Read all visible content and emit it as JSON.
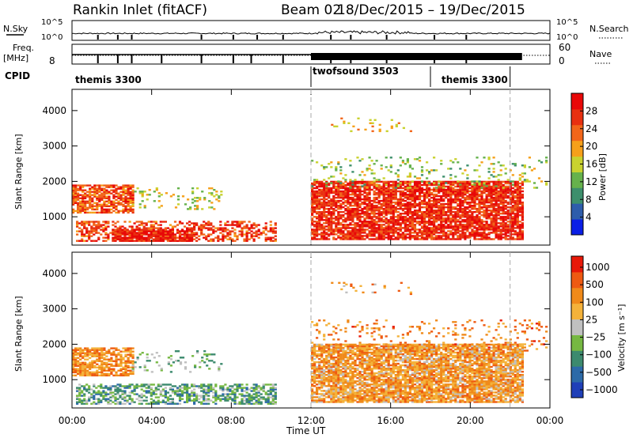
{
  "header": {
    "station": "Rankin Inlet (fitACF)",
    "beam": "Beam 02",
    "date_range": "18/Dec/2015 – 19/Dec/2015"
  },
  "noise_panel": {
    "left_label": "N.Sky",
    "right_label": "N.Search",
    "left_ticks": [
      "10^5",
      "10^0"
    ],
    "right_ticks": [
      "10^5",
      "10^0"
    ]
  },
  "freq_panel": {
    "left_label_1": "Freq.",
    "left_label_2": "[MHz]",
    "right_label": "Nave",
    "left_ticks": [
      "8"
    ],
    "right_ticks": [
      "60",
      "0"
    ]
  },
  "cpid": {
    "label": "CPID",
    "segments": [
      {
        "name": "themis 3300",
        "start_h": 0,
        "end_h": 12
      },
      {
        "name": "twofsound 3503",
        "start_h": 12,
        "end_h": 18
      },
      {
        "name": "themis 3300",
        "start_h": 18,
        "end_h": 22
      }
    ]
  },
  "colors": {
    "power_scale": [
      "#0a1ee6",
      "#2e5dab",
      "#3d8f6c",
      "#66b24c",
      "#c9d22f",
      "#f6a01a",
      "#f2661a",
      "#e83010",
      "#e80808"
    ],
    "velocity_scale": [
      "#1f3fb8",
      "#2c6aa8",
      "#3c8a6e",
      "#76b842",
      "#c0c0c0",
      "#f4b23a",
      "#f08a1a",
      "#ee5a12",
      "#e81808"
    ],
    "marker_line": "#aaaaaa"
  },
  "chart_data": [
    {
      "type": "heatmap",
      "title": "Power",
      "ylabel": "Slant Range [km]",
      "xlim_h": [
        0,
        24
      ],
      "ylim": [
        200,
        4600
      ],
      "y_ticks": [
        1000,
        2000,
        3000,
        4000
      ],
      "colorbar": {
        "label": "Power [dB]",
        "ticks": [
          4,
          8,
          12,
          16,
          20,
          24,
          28
        ],
        "range": [
          0,
          32
        ]
      },
      "bands": [
        {
          "x0": 0.0,
          "x1": 3.1,
          "y0": 1100,
          "y1": 1900,
          "level": 6.5,
          "density": 0.75
        },
        {
          "x0": 0.2,
          "x1": 10.2,
          "y0": 300,
          "y1": 850,
          "level": 6.8,
          "density": 0.5
        },
        {
          "x0": 2.0,
          "x1": 6.0,
          "y0": 300,
          "y1": 650,
          "level": 7.6,
          "density": 0.8
        },
        {
          "x0": 3.0,
          "x1": 7.5,
          "y0": 1200,
          "y1": 1800,
          "level": 4.0,
          "density": 0.15
        },
        {
          "x0": 12.0,
          "x1": 22.6,
          "y0": 350,
          "y1": 2000,
          "level": 7.3,
          "density": 0.82
        },
        {
          "x0": 12.0,
          "x1": 23.8,
          "y0": 1800,
          "y1": 2700,
          "level": 3.5,
          "density": 0.12
        },
        {
          "x0": 13.0,
          "x1": 17.0,
          "y0": 3400,
          "y1": 3800,
          "level": 5.0,
          "density": 0.1
        }
      ]
    },
    {
      "type": "heatmap",
      "title": "Velocity",
      "ylabel": "Slant Range [km]",
      "xlabel": "Time UT",
      "xlim_h": [
        0,
        24
      ],
      "x_ticks": [
        "00:00",
        "04:00",
        "08:00",
        "12:00",
        "16:00",
        "20:00",
        "00:00"
      ],
      "ylim": [
        200,
        4600
      ],
      "y_ticks": [
        1000,
        2000,
        3000,
        4000
      ],
      "colorbar": {
        "label": "Velocity [m s⁻¹]",
        "ticks": [
          "1000",
          "500",
          "100",
          "25",
          "−25",
          "−100",
          "−500",
          "−1000"
        ]
      },
      "bands": [
        {
          "x0": 0.0,
          "x1": 3.1,
          "y0": 1100,
          "y1": 1900,
          "level": 6.0,
          "density": 0.72
        },
        {
          "x0": 0.2,
          "x1": 10.2,
          "y0": 300,
          "y1": 850,
          "level": 2.5,
          "density": 0.55
        },
        {
          "x0": 3.0,
          "x1": 7.5,
          "y0": 1200,
          "y1": 1800,
          "level": 3.0,
          "density": 0.15
        },
        {
          "x0": 12.0,
          "x1": 22.6,
          "y0": 350,
          "y1": 2000,
          "level": 5.6,
          "density": 0.82
        },
        {
          "x0": 12.0,
          "x1": 23.8,
          "y0": 1800,
          "y1": 2700,
          "level": 6.2,
          "density": 0.12
        },
        {
          "x0": 13.0,
          "x1": 17.0,
          "y0": 3400,
          "y1": 3800,
          "level": 5.5,
          "density": 0.1
        }
      ]
    }
  ]
}
